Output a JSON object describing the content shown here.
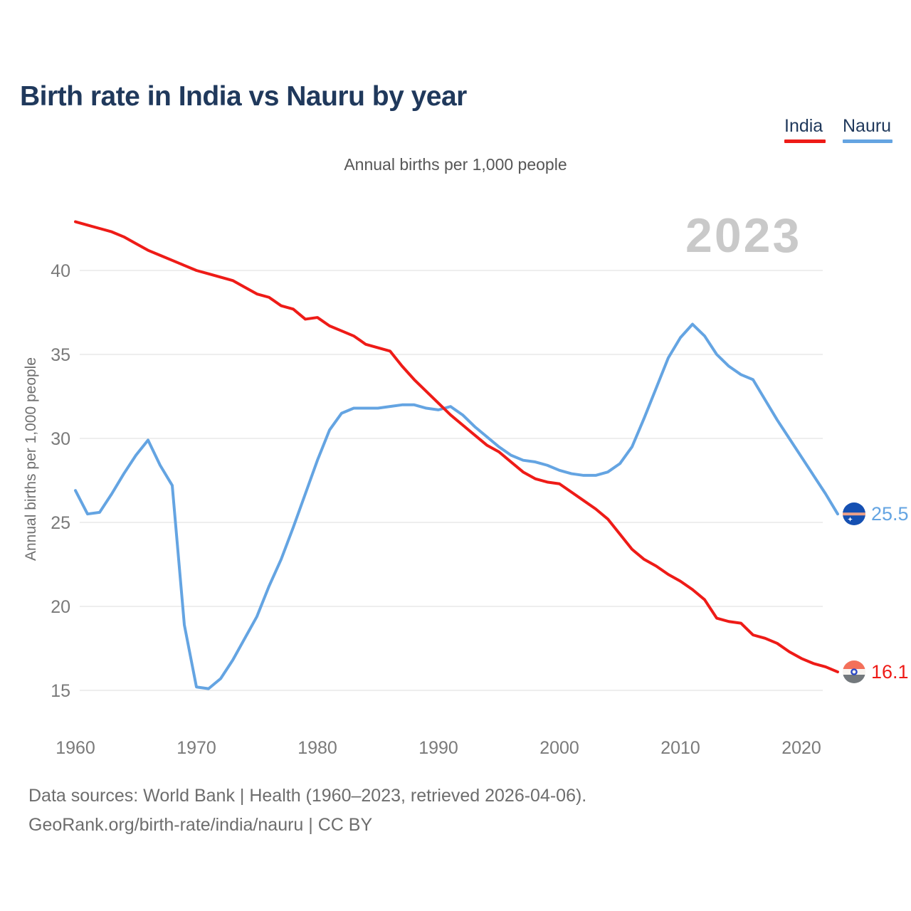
{
  "page": {
    "title": "Birth rate in India vs Nauru by year"
  },
  "legend": {
    "items": [
      {
        "label": "India",
        "color": "#ee1b17"
      },
      {
        "label": "Nauru",
        "color": "#64a4e2"
      }
    ]
  },
  "chart": {
    "subtitle": "Annual births per 1,000 people",
    "watermark_year": "2023",
    "y_axis_label": "Annual births per 1,000 people"
  },
  "end_labels": [
    {
      "series": "Nauru",
      "value": "25.5",
      "icon": "nauru-flag-icon"
    },
    {
      "series": "India",
      "value": "16.1",
      "icon": "india-flag-icon"
    }
  ],
  "footer": {
    "line1": "Data sources: World Bank | Health (1960–2023, retrieved 2026-04-06).",
    "line2": "GeoRank.org/birth-rate/india/nauru | CC BY"
  },
  "chart_data": {
    "type": "line",
    "title": "Birth rate in India vs Nauru by year",
    "subtitle": "Annual births per 1,000 people",
    "xlabel": "",
    "ylabel": "Annual births per 1,000 people",
    "legend_position": "top-right",
    "grid": true,
    "ylim": [
      13.8,
      44.2
    ],
    "yticks": [
      15,
      20,
      25,
      30,
      35,
      40
    ],
    "xticks": [
      1960,
      1970,
      1980,
      1990,
      2000,
      2010,
      2020
    ],
    "years": [
      1960,
      1961,
      1962,
      1963,
      1964,
      1965,
      1966,
      1967,
      1968,
      1969,
      1970,
      1971,
      1972,
      1973,
      1974,
      1975,
      1976,
      1977,
      1978,
      1979,
      1980,
      1981,
      1982,
      1983,
      1984,
      1985,
      1986,
      1987,
      1988,
      1989,
      1990,
      1991,
      1992,
      1993,
      1994,
      1995,
      1996,
      1997,
      1998,
      1999,
      2000,
      2001,
      2002,
      2003,
      2004,
      2005,
      2006,
      2007,
      2008,
      2009,
      2010,
      2011,
      2012,
      2013,
      2014,
      2015,
      2016,
      2017,
      2018,
      2019,
      2020,
      2021,
      2022,
      2023
    ],
    "series": [
      {
        "name": "India",
        "color": "#ee1b17",
        "end_label": "16.1",
        "values": [
          42.9,
          42.7,
          42.5,
          42.3,
          42.0,
          41.6,
          41.2,
          40.9,
          40.6,
          40.3,
          40.0,
          39.8,
          39.6,
          39.4,
          39.0,
          38.6,
          38.4,
          37.9,
          37.7,
          37.1,
          37.2,
          36.7,
          36.4,
          36.1,
          35.6,
          35.4,
          35.2,
          34.3,
          33.5,
          32.8,
          32.1,
          31.4,
          30.8,
          30.2,
          29.6,
          29.2,
          28.6,
          28.0,
          27.6,
          27.4,
          27.3,
          26.8,
          26.3,
          25.8,
          25.2,
          24.3,
          23.4,
          22.8,
          22.4,
          21.9,
          21.5,
          21.0,
          20.4,
          19.3,
          19.1,
          19.0,
          18.3,
          18.1,
          17.8,
          17.3,
          16.9,
          16.6,
          16.4,
          16.1
        ]
      },
      {
        "name": "Nauru",
        "color": "#64a4e2",
        "end_label": "25.5",
        "values": [
          26.9,
          25.5,
          25.6,
          26.7,
          27.9,
          29.0,
          29.9,
          28.4,
          27.2,
          18.9,
          15.2,
          15.1,
          15.7,
          16.8,
          18.1,
          19.4,
          21.2,
          22.8,
          24.7,
          26.7,
          28.7,
          30.5,
          31.5,
          31.8,
          31.8,
          31.8,
          31.9,
          32.0,
          32.0,
          31.8,
          31.7,
          31.9,
          31.4,
          30.7,
          30.1,
          29.5,
          29.0,
          28.7,
          28.6,
          28.4,
          28.1,
          27.9,
          27.8,
          27.8,
          28.0,
          28.5,
          29.5,
          31.2,
          33.0,
          34.8,
          36.0,
          36.8,
          36.1,
          35.0,
          34.3,
          33.8,
          33.5,
          32.3,
          31.1,
          30.0,
          28.9,
          27.8,
          26.7,
          25.5
        ]
      }
    ]
  }
}
